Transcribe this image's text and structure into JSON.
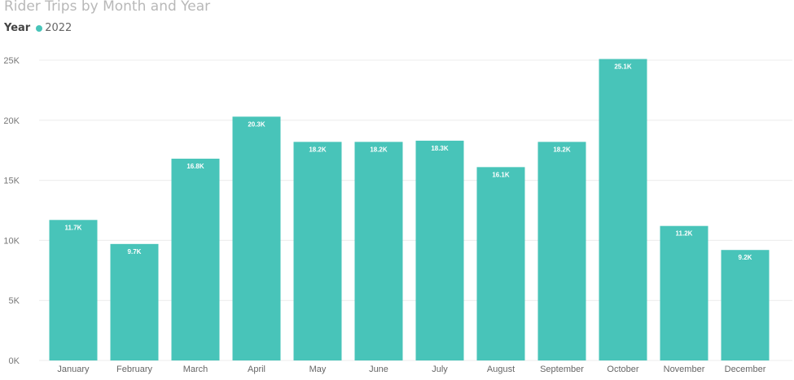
{
  "chart_data": {
    "type": "bar",
    "title": "Rider Trips by Month and Year",
    "legend": {
      "title": "Year",
      "position": "top-left"
    },
    "categories": [
      "January",
      "February",
      "March",
      "April",
      "May",
      "June",
      "July",
      "August",
      "September",
      "October",
      "November",
      "December"
    ],
    "series": [
      {
        "name": "2022",
        "color": "#48c4b9",
        "values": [
          11700,
          9700,
          16800,
          20300,
          18200,
          18200,
          18300,
          16100,
          18200,
          25100,
          11200,
          9200
        ],
        "labels": [
          "11.7K",
          "9.7K",
          "16.8K",
          "20.3K",
          "18.2K",
          "18.2K",
          "18.3K",
          "16.1K",
          "18.2K",
          "25.1K",
          "11.2K",
          "9.2K"
        ]
      }
    ],
    "y_ticks": [
      {
        "value": 0,
        "label": "0K"
      },
      {
        "value": 5000,
        "label": "5K"
      },
      {
        "value": 10000,
        "label": "10K"
      },
      {
        "value": 15000,
        "label": "15K"
      },
      {
        "value": 20000,
        "label": "20K"
      },
      {
        "value": 25000,
        "label": "25K"
      }
    ],
    "ylim": [
      0,
      25000
    ],
    "grid": true,
    "gridline_color": "#ececec"
  }
}
